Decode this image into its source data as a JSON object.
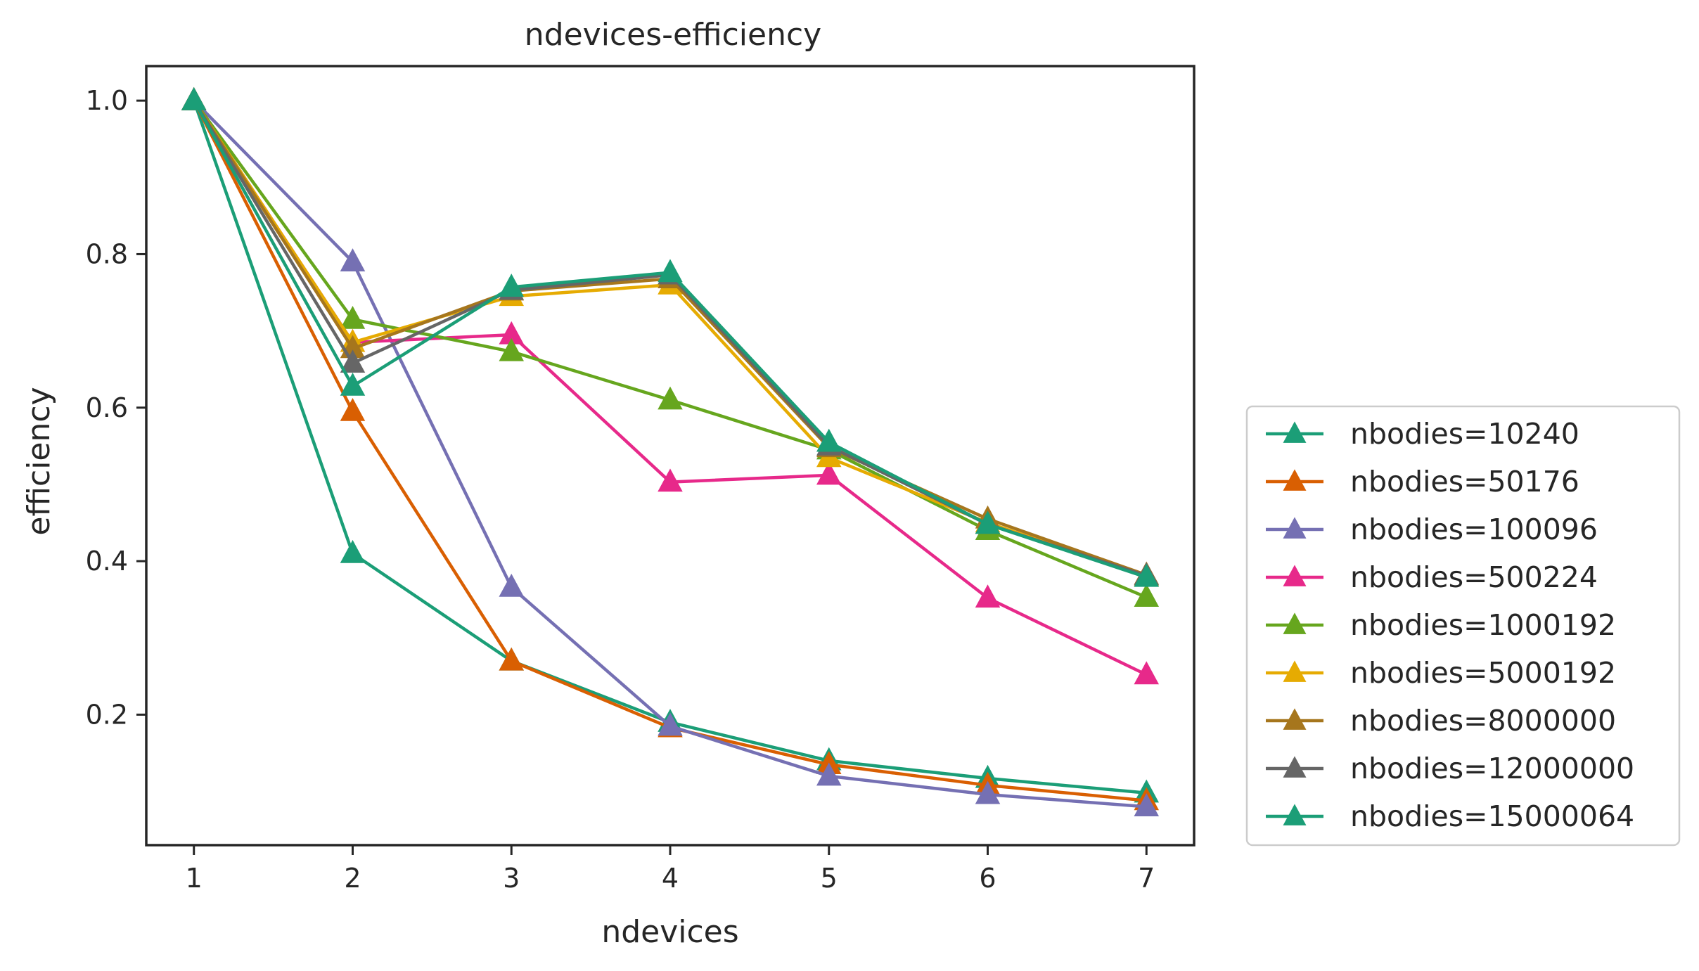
{
  "chart_data": {
    "type": "line",
    "title": "ndevices-efficiency",
    "xlabel": "ndevices",
    "ylabel": "efficiency",
    "x": [
      1,
      2,
      3,
      4,
      5,
      6,
      7
    ],
    "xticks": [
      "1",
      "2",
      "3",
      "4",
      "5",
      "6",
      "7"
    ],
    "yticks": [
      "0.2",
      "0.4",
      "0.6",
      "0.8",
      "1.0"
    ],
    "xlim": [
      0.7,
      7.3
    ],
    "ylim": [
      0.03,
      1.045
    ],
    "grid": false,
    "legend_position": "outside-right-bottom",
    "series": [
      {
        "name": "nbodies=10240",
        "color": "#1b9e77",
        "values": [
          1.0,
          0.41,
          0.27,
          0.19,
          0.14,
          0.117,
          0.098
        ]
      },
      {
        "name": "nbodies=50176",
        "color": "#d95f02",
        "values": [
          1.0,
          0.595,
          0.27,
          0.183,
          0.135,
          0.108,
          0.088
        ]
      },
      {
        "name": "nbodies=100096",
        "color": "#7570b3",
        "values": [
          1.0,
          0.79,
          0.366,
          0.185,
          0.12,
          0.096,
          0.08
        ]
      },
      {
        "name": "nbodies=500224",
        "color": "#e7298a",
        "values": [
          1.0,
          0.685,
          0.695,
          0.503,
          0.512,
          0.352,
          0.252
        ]
      },
      {
        "name": "nbodies=1000192",
        "color": "#66a61e",
        "values": [
          1.0,
          0.715,
          0.673,
          0.61,
          0.545,
          0.44,
          0.353
        ]
      },
      {
        "name": "nbodies=5000192",
        "color": "#e6ab02",
        "values": [
          1.0,
          0.685,
          0.745,
          0.76,
          0.535,
          0.45,
          0.38
        ]
      },
      {
        "name": "nbodies=8000000",
        "color": "#a6761d",
        "values": [
          1.0,
          0.677,
          0.752,
          0.768,
          0.548,
          0.455,
          0.382
        ]
      },
      {
        "name": "nbodies=12000000",
        "color": "#666666",
        "values": [
          1.0,
          0.658,
          0.753,
          0.773,
          0.55,
          0.448,
          0.381
        ]
      },
      {
        "name": "nbodies=15000064",
        "color": "#1b9e77",
        "values": [
          1.0,
          0.628,
          0.757,
          0.776,
          0.555,
          0.448,
          0.379
        ]
      }
    ]
  }
}
